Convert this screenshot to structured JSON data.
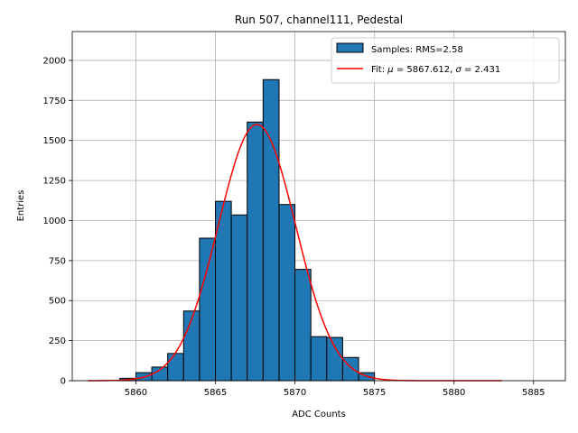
{
  "chart_data": {
    "type": "bar",
    "title": "Run 507, channel111, Pedestal",
    "xlabel": "ADC Counts",
    "ylabel": "Entries",
    "xlim": [
      5856,
      5887
    ],
    "ylim": [
      0,
      2180
    ],
    "xticks": [
      5860,
      5865,
      5870,
      5875,
      5880,
      5885
    ],
    "yticks": [
      0,
      250,
      500,
      750,
      1000,
      1250,
      1500,
      1750,
      2000
    ],
    "grid": true,
    "legend_position": "top-right",
    "histogram": {
      "name": "Samples: RMS=2.58",
      "color": "#1f77b4",
      "bin_edges": [
        5859,
        5860,
        5861,
        5862,
        5863,
        5864,
        5865,
        5866,
        5867,
        5868,
        5869,
        5870,
        5871,
        5872,
        5873,
        5874,
        5875
      ],
      "counts": [
        15,
        50,
        85,
        170,
        435,
        890,
        1120,
        1035,
        1615,
        1880,
        1100,
        695,
        275,
        270,
        145,
        50
      ]
    },
    "fit": {
      "name_prefix": "Fit: ",
      "mu_symbol": "μ",
      "mu_value": " = 5867.612, ",
      "sigma_symbol": "σ",
      "sigma_value": " = 2.431",
      "color": "#ff0000",
      "mu": 5867.612,
      "sigma": 2.431,
      "amplitude": 1600,
      "x_range": [
        5857,
        5883
      ]
    }
  }
}
